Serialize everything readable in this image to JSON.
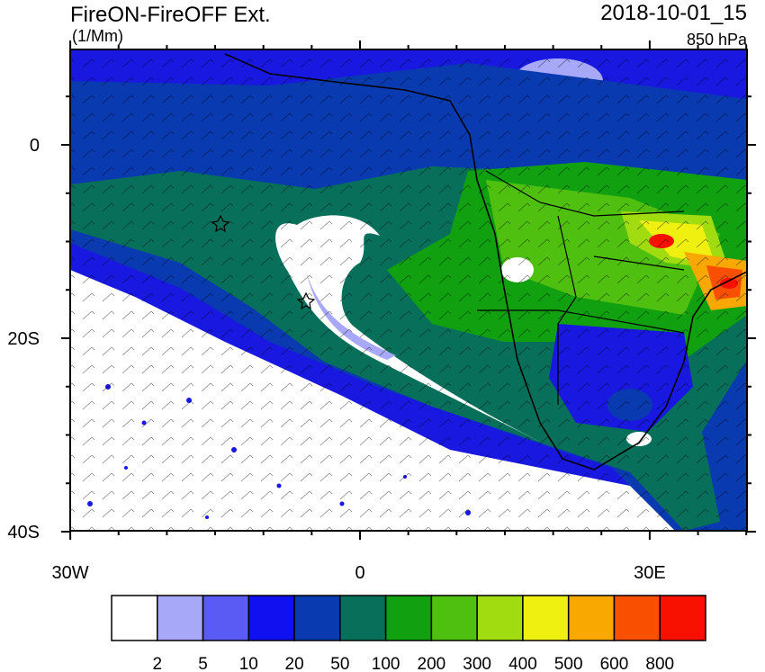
{
  "header": {
    "title": "FireON-FireOFF Ext.",
    "units": "(1/Mm)",
    "time": "2018-10-01_15",
    "level": "850 hPa"
  },
  "map": {
    "x_labels": [
      "30W",
      "0",
      "30E"
    ],
    "y_labels": [
      "0",
      "20S",
      "40S"
    ]
  },
  "colorbar": {
    "labels": [
      2,
      5,
      10,
      20,
      50,
      100,
      200,
      300,
      400,
      500,
      600,
      800
    ],
    "colors": [
      "#ffffff",
      "#a8a8f8",
      "#5a5af5",
      "#1010f0",
      "#0a3ab0",
      "#08705a",
      "#10a010",
      "#50c010",
      "#a0dc10",
      "#f0f010",
      "#f8a800",
      "#f85000",
      "#f81000"
    ]
  }
}
